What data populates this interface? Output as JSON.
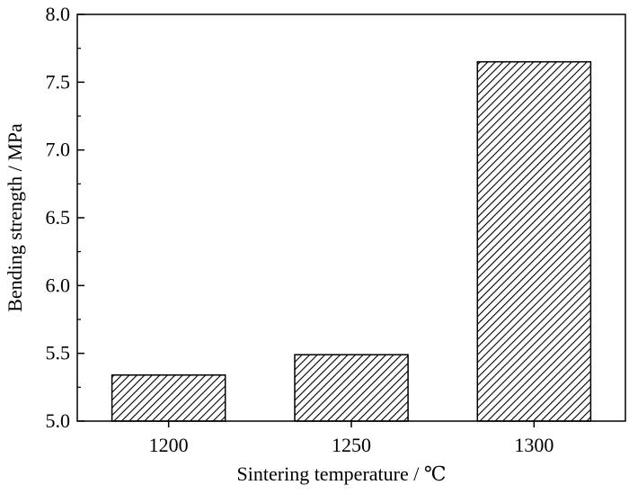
{
  "chart_data": {
    "type": "bar",
    "categories": [
      "1200",
      "1250",
      "1300"
    ],
    "values": [
      5.34,
      5.49,
      7.65
    ],
    "xlabel": "Sintering temperature / ℃",
    "ylabel": "Bending strength / MPa",
    "ylim": [
      5.0,
      8.0
    ],
    "yticks": [
      "5.0",
      "5.5",
      "6.0",
      "6.5",
      "7.0",
      "7.5",
      "8.0"
    ],
    "grid": false,
    "bar_fill": "diagonal hatch",
    "colors": {
      "bar_stroke": "#000000",
      "hatch": "#000000",
      "background": "#ffffff"
    }
  }
}
